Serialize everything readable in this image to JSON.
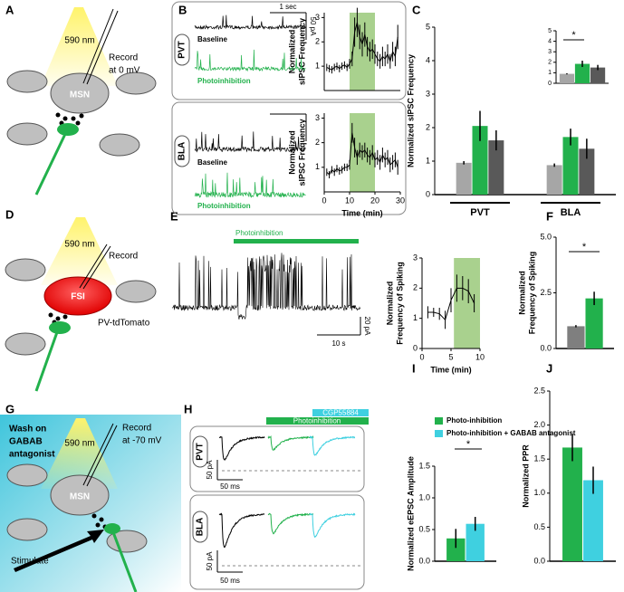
{
  "panel_letters": [
    "A",
    "B",
    "C",
    "D",
    "E",
    "F",
    "G",
    "H",
    "I",
    "J"
  ],
  "schematic_a": {
    "light": "590 nm",
    "record": [
      "Record",
      "at 0 mV"
    ],
    "cell": "MSN"
  },
  "schematic_d": {
    "light": "590 nm",
    "record": "Record",
    "cell": "FSI",
    "reporter": "PV-tdTomato"
  },
  "schematic_g": {
    "wash": [
      "Wash on",
      "GABAB",
      "antagonist"
    ],
    "light": "590 nm",
    "record": [
      "Record",
      "at -70 mV"
    ],
    "cell": "MSN",
    "stimulate": "Stimulate"
  },
  "traces_b": {
    "region_top": "PVT",
    "region_bottom": "BLA",
    "baseline": "Baseline",
    "photo": "Photoinhibition",
    "scale_time": "1 sec",
    "scale_current": "50 pA"
  },
  "trace_e": {
    "bar": "Photoinhibition",
    "scale_current": "20 pA",
    "scale_time": "10 s"
  },
  "traces_h": {
    "drug": "CGP55884",
    "photo": "Photoinhibition",
    "region_top": "PVT",
    "region_bottom": "BLA",
    "scale_current": "50 pA",
    "scale_time": "50 ms"
  },
  "chart_data": [
    {
      "type": "line",
      "ylabel": [
        "Normalized",
        "sIPSC Frequency"
      ],
      "x": [
        1,
        2,
        3,
        4,
        5,
        6,
        7,
        8,
        9,
        10,
        11,
        12,
        13,
        14,
        15,
        16,
        17,
        18,
        19,
        20,
        21,
        22,
        23,
        24,
        25,
        26,
        27,
        28,
        29
      ],
      "series": [
        {
          "color": "#000000",
          "values": [
            0.95,
            0.9,
            0.85,
            0.95,
            1.0,
            0.9,
            1.0,
            1.05,
            0.95,
            1.1,
            1.3,
            2.4,
            2.8,
            2.2,
            1.9,
            2.3,
            1.8,
            1.6,
            1.7,
            1.5,
            1.3,
            1.2,
            1.4,
            1.3,
            1.5,
            1.2,
            1.6,
            1.4,
            2.2
          ],
          "errors": [
            0.15,
            0.15,
            0.15,
            0.15,
            0.15,
            0.15,
            0.15,
            0.15,
            0.15,
            0.2,
            0.3,
            0.6,
            0.6,
            0.5,
            0.5,
            0.5,
            0.4,
            0.4,
            0.4,
            0.4,
            0.3,
            0.3,
            0.4,
            0.3,
            0.4,
            0.3,
            0.4,
            0.4,
            0.5
          ]
        }
      ],
      "xlim": [
        0,
        30
      ],
      "ylim": [
        0,
        3.2
      ],
      "yticks": [
        1,
        2,
        3
      ],
      "shade": [
        10,
        20
      ],
      "shade_color": "#a9d18e"
    },
    {
      "type": "line",
      "ylabel": [
        "Normalized",
        "sIPSC Frequency"
      ],
      "xlabel": "Time (min)",
      "x": [
        1,
        2,
        3,
        4,
        5,
        6,
        7,
        8,
        9,
        10,
        11,
        12,
        13,
        14,
        15,
        16,
        17,
        18,
        19,
        20,
        21,
        22,
        23,
        24,
        25,
        26,
        27,
        28,
        29
      ],
      "series": [
        {
          "color": "#000000",
          "values": [
            0.8,
            0.7,
            0.9,
            0.8,
            0.95,
            0.85,
            0.9,
            1.0,
            1.0,
            1.1,
            2.4,
            1.8,
            1.4,
            1.7,
            1.6,
            1.7,
            1.5,
            1.4,
            1.6,
            1.3,
            1.4,
            1.2,
            1.5,
            1.3,
            1.4,
            1.1,
            1.2,
            1.3,
            1.0
          ],
          "errors": [
            0.15,
            0.15,
            0.15,
            0.15,
            0.15,
            0.15,
            0.15,
            0.15,
            0.15,
            0.2,
            0.4,
            0.4,
            0.3,
            0.3,
            0.3,
            0.3,
            0.3,
            0.3,
            0.3,
            0.3,
            0.3,
            0.3,
            0.3,
            0.3,
            0.3,
            0.3,
            0.3,
            0.3,
            0.3
          ]
        }
      ],
      "xlim": [
        0,
        30
      ],
      "ylim": [
        0,
        3.2
      ],
      "xticks": [
        0,
        10,
        20,
        30
      ],
      "yticks": [
        1,
        2,
        3
      ],
      "shade": [
        10,
        20
      ],
      "shade_color": "#a9d18e"
    },
    {
      "type": "bar",
      "ylabel": [
        "Normalized sIPSC Frequency"
      ],
      "categories": [
        "PVT",
        "BLA"
      ],
      "series": [
        {
          "color": "#a6a6a6",
          "values": [
            0.95,
            0.88
          ],
          "errors": [
            0.05,
            0.05
          ]
        },
        {
          "color": "#22b14c",
          "values": [
            2.05,
            1.72
          ],
          "errors": [
            0.45,
            0.25
          ]
        },
        {
          "color": "#595959",
          "values": [
            1.62,
            1.37
          ],
          "errors": [
            0.3,
            0.3
          ]
        }
      ],
      "ylim": [
        0,
        5
      ],
      "yticks": [
        0,
        1,
        2,
        3,
        4,
        5
      ]
    },
    {
      "type": "bar",
      "categories": [
        null
      ],
      "series": [
        {
          "color": "#a6a6a6",
          "values": [
            0.9
          ],
          "errors": [
            0.05
          ]
        },
        {
          "color": "#22b14c",
          "values": [
            1.85
          ],
          "errors": [
            0.3
          ]
        },
        {
          "color": "#595959",
          "values": [
            1.5
          ],
          "errors": [
            0.25
          ]
        }
      ],
      "ylim": [
        0,
        5
      ],
      "yticks": [
        0,
        1,
        2,
        3,
        4,
        5
      ],
      "annotation": "*"
    },
    {
      "type": "line",
      "ylabel": [
        "Normalized",
        "Frequency of Spiking"
      ],
      "xlabel": "Time (min)",
      "x": [
        1,
        2,
        3,
        4,
        5,
        6,
        7,
        8,
        9
      ],
      "series": [
        {
          "color": "#000000",
          "values": [
            1.2,
            1.2,
            1.15,
            0.95,
            1.6,
            2.0,
            2.0,
            1.9,
            1.5
          ],
          "errors": [
            0.2,
            0.15,
            0.2,
            0.3,
            0.4,
            0.45,
            0.4,
            0.4,
            0.3
          ]
        }
      ],
      "xlim": [
        0,
        10
      ],
      "ylim": [
        0,
        3
      ],
      "xticks": [
        0,
        5,
        10
      ],
      "yticks": [
        0,
        1,
        2,
        3
      ],
      "shade": [
        5.5,
        10
      ],
      "shade_color": "#a9d18e"
    },
    {
      "type": "bar",
      "ylabel": [
        "Normalized",
        "Frequency of Spiking"
      ],
      "categories": [
        null
      ],
      "series": [
        {
          "color": "#7f7f7f",
          "values": [
            1.0
          ],
          "errors": [
            0.05
          ]
        },
        {
          "color": "#22b14c",
          "values": [
            2.25
          ],
          "errors": [
            0.3
          ]
        }
      ],
      "ylim": [
        0,
        5
      ],
      "yticks": [
        {
          "value": 0,
          "label": "0.0"
        },
        2.5,
        {
          "value": 5,
          "label": "5.0"
        }
      ],
      "annotation": "*"
    },
    {
      "type": "bar",
      "ylabel": [
        "Normalized eEPSC Amplitude"
      ],
      "categories": [
        null
      ],
      "legend": "upper left",
      "series": [
        {
          "name": "Photo-inhibition",
          "color": "#22b14c",
          "values": [
            0.36
          ],
          "errors": [
            0.15
          ]
        },
        {
          "name": "Photo-inhibition + GABAB antagonist",
          "color": "#3fd0e0",
          "values": [
            0.59
          ],
          "errors": [
            0.11
          ]
        }
      ],
      "ylim": [
        0,
        1.5
      ],
      "yticks": [
        {
          "value": 0,
          "label": "0.0"
        },
        0.5,
        {
          "value": 1,
          "label": "1.0"
        },
        1.5
      ],
      "annotation": "*"
    },
    {
      "type": "bar",
      "ylabel": [
        "Normalized PPR"
      ],
      "categories": [
        null
      ],
      "series": [
        {
          "color": "#22b14c",
          "values": [
            1.67
          ],
          "errors": [
            0.2
          ]
        },
        {
          "color": "#3fd0e0",
          "values": [
            1.19
          ],
          "errors": [
            0.2
          ]
        }
      ],
      "ylim": [
        0,
        2.5
      ],
      "yticks": [
        {
          "value": 0,
          "label": "0.0"
        },
        0.5,
        {
          "value": 1,
          "label": "1.0"
        },
        1.5,
        {
          "value": 2,
          "label": "2.0"
        },
        2.5
      ]
    }
  ]
}
